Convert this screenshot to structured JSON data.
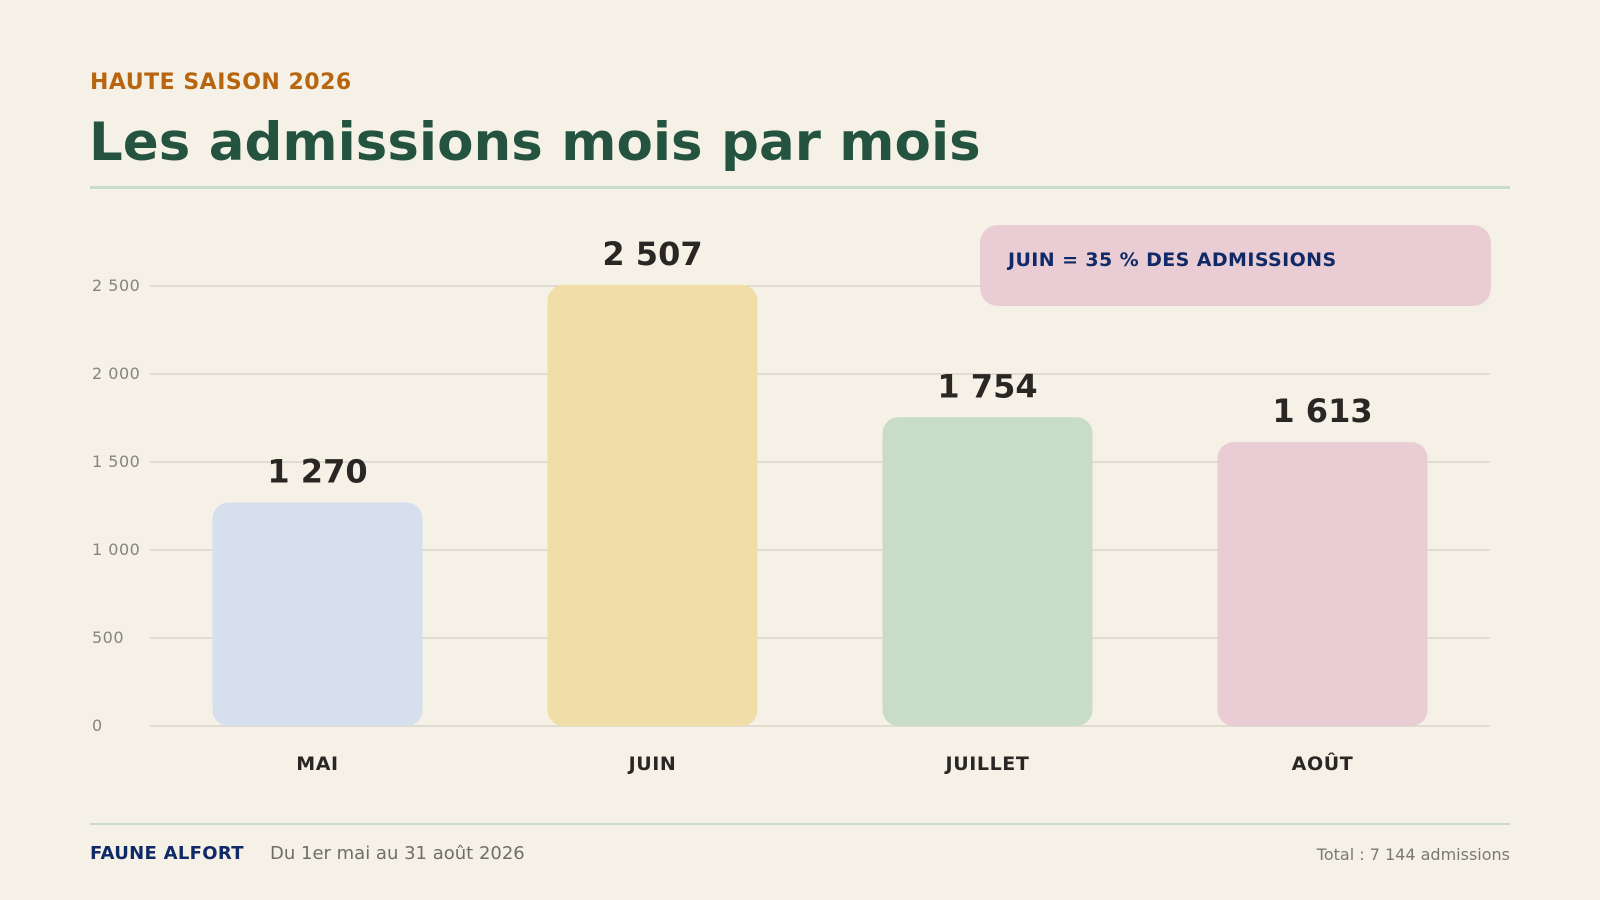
{
  "header": {
    "eyebrow": "HAUTE SAISON 2026",
    "title": "Les admissions mois par mois"
  },
  "callout": {
    "text": "JUIN = 35 % DES ADMISSIONS"
  },
  "footer": {
    "brand": "FAUNE ALFORT",
    "range": "Du 1er mai au 31 août 2026",
    "total": "Total : 7 144 admissions"
  },
  "colors": {
    "background": "#f5f1e7",
    "title": "#24533f",
    "eyebrow": "#b8650f",
    "brand": "#0f2a66",
    "gridline": "#d9d6cb",
    "bar_mai": "#d5dfed",
    "bar_juin": "#f1dda8",
    "bar_juillet": "#c9dcc7",
    "bar_aout": "#eaccd4"
  },
  "chart_data": {
    "type": "bar",
    "categories": [
      "MAI",
      "JUIN",
      "JUILLET",
      "AOÛT"
    ],
    "values": [
      1270,
      2507,
      1754,
      1613
    ],
    "value_labels": [
      "1 270",
      "2 507",
      "1 754",
      "1 613"
    ],
    "bar_colors": [
      "#d5dfed",
      "#f1dda8",
      "#c9dcc7",
      "#eaccd4"
    ],
    "yticks": [
      0,
      500,
      1000,
      1500,
      2000,
      2500
    ],
    "ytick_labels": [
      "0",
      "500",
      "1 000",
      "1 500",
      "2 000",
      "2 500"
    ],
    "ylim": [
      0,
      2500
    ],
    "grid": true,
    "xlabel": "",
    "ylabel": ""
  }
}
